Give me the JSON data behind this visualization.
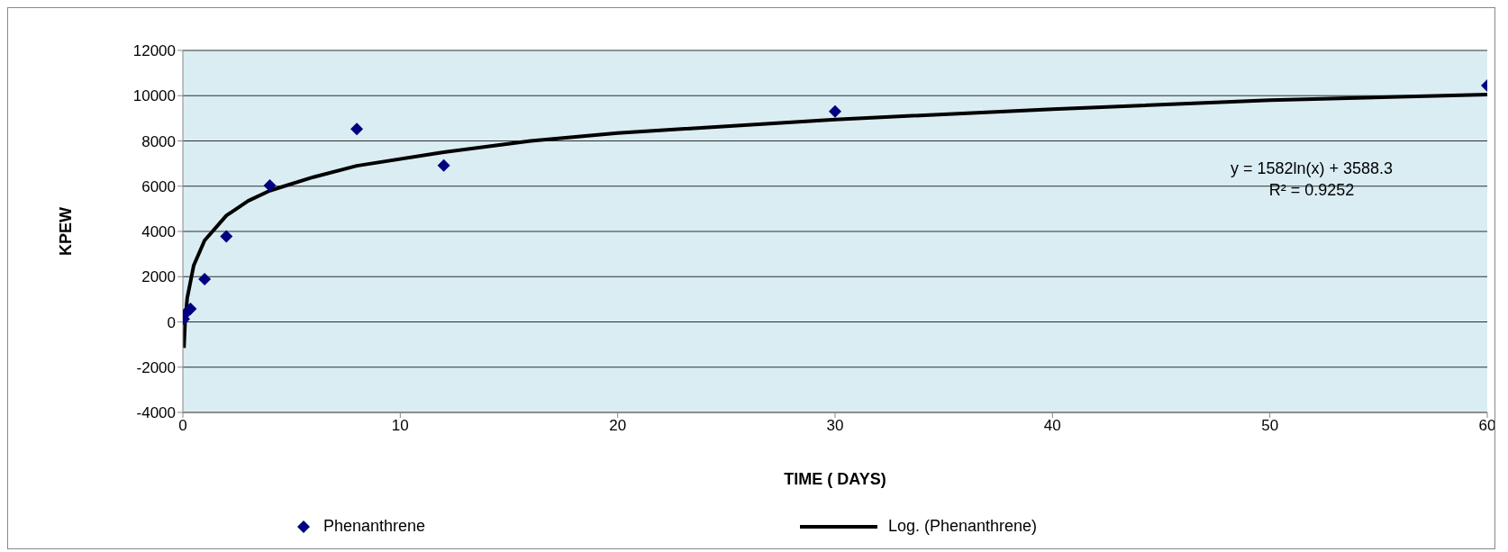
{
  "chart_data": {
    "type": "scatter",
    "xlabel": "TIME ( DAYS)",
    "ylabel": "KPEW",
    "xlim": [
      0,
      60
    ],
    "xticks": [
      0,
      10,
      20,
      30,
      40,
      50,
      60
    ],
    "ylim": [
      -4000,
      12000
    ],
    "yticks": [
      -4000,
      -2000,
      0,
      2000,
      4000,
      6000,
      8000,
      10000,
      12000
    ],
    "grid": "y",
    "legend": "bottom",
    "marker": "diamond",
    "annotations": [
      "y = 1582ln(x) + 3588.3\nR² = 0.9252"
    ],
    "series": [
      {
        "name": "Phenanthrene",
        "color": "#000080",
        "x": [
          0.04,
          0.125,
          0.35,
          1,
          2,
          4,
          8,
          12,
          30,
          60
        ],
        "values": [
          130,
          380,
          580,
          1890,
          3780,
          6030,
          8530,
          6920,
          9300,
          10450
        ]
      },
      {
        "name": "Log. (Phenanthrene)",
        "type": "line",
        "color": "#000000",
        "marker": "none",
        "line_style": "solid",
        "x": [
          0.05,
          0.1,
          0.2,
          0.5,
          1,
          2,
          3,
          4,
          6,
          8,
          12,
          16,
          20,
          30,
          40,
          50,
          60
        ],
        "values": [
          -1150,
          -50,
          1050,
          2500,
          3600,
          4700,
          5350,
          5800,
          6400,
          6900,
          7500,
          8000,
          8350,
          8950,
          9400,
          9800,
          10050
        ]
      }
    ]
  }
}
